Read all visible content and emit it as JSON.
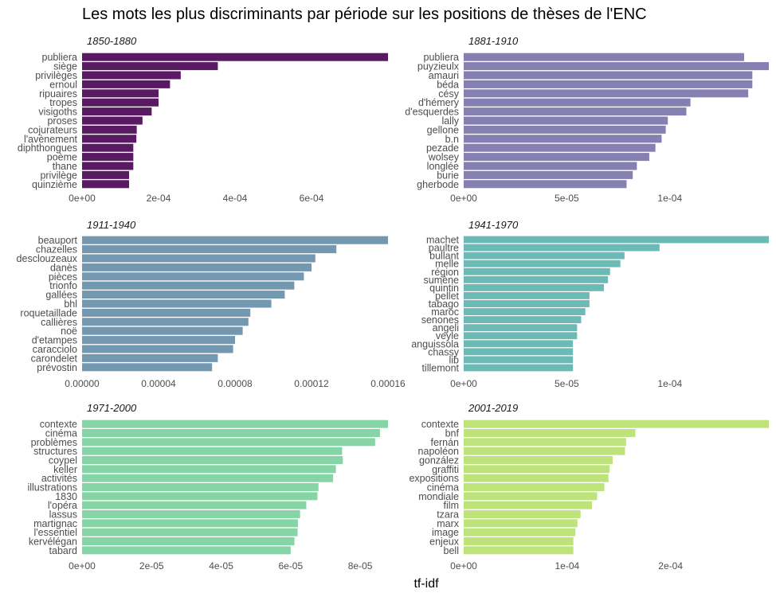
{
  "chart_data": {
    "type": "bar",
    "orientation": "horizontal",
    "title": "Les mots les plus discriminants par période sur les positions de thèses de l'ENC",
    "xlabel": "tf-idf",
    "panels": [
      {
        "title": "1850-1880",
        "color": "#5a1a63",
        "categories": [
          "publiera",
          "siège",
          "privilèges",
          "ernoul",
          "ripuaires",
          "tropes",
          "visigoths",
          "proses",
          "cojurateurs",
          "l'avènement",
          "diphthongues",
          "poème",
          "thane",
          "privilège",
          "quinzième"
        ],
        "values": [
          0.0008,
          0.000355,
          0.000258,
          0.00023,
          0.0002,
          0.0002,
          0.000182,
          0.000158,
          0.000143,
          0.000142,
          0.000134,
          0.000134,
          0.000134,
          0.000123,
          0.000123
        ],
        "xlim": [
          0,
          0.0008
        ],
        "ticks": [
          0,
          0.0002,
          0.0004,
          0.0006
        ],
        "tick_labels": [
          "0e+00",
          "2e-04",
          "4e-04",
          "6e-04"
        ]
      },
      {
        "title": "1881-1910",
        "color": "#8680b2",
        "categories": [
          "publiera",
          "puyzieulx",
          "amauri",
          "béda",
          "césy",
          "d'hémery",
          "d'esquerdes",
          "lally",
          "gellone",
          "b.n",
          "pezade",
          "wolsey",
          "longlée",
          "burie",
          "gherbode"
        ],
        "values": [
          0.000136,
          0.000148,
          0.00014,
          0.00014,
          0.000138,
          0.00011,
          0.000108,
          9.9e-05,
          9.8e-05,
          9.6e-05,
          9.3e-05,
          9e-05,
          8.4e-05,
          8.2e-05,
          7.9e-05
        ],
        "xlim": [
          0,
          0.000148
        ],
        "ticks": [
          0,
          5e-05,
          0.0001
        ],
        "tick_labels": [
          "0e+00",
          "5e-05",
          "1e-04"
        ]
      },
      {
        "title": "1911-1940",
        "color": "#7498b0",
        "categories": [
          "beauport",
          "chazelles",
          "desclouzeaux",
          "danès",
          "pièces",
          "trionfo",
          "gallées",
          "bhl",
          "roquetaillade",
          "callières",
          "noë",
          "d'etampes",
          "caracciolo",
          "carondelet",
          "prévostin"
        ],
        "values": [
          0.00016,
          0.000133,
          0.000122,
          0.00012,
          0.000116,
          0.000111,
          0.000106,
          9.9e-05,
          8.8e-05,
          8.7e-05,
          8.4e-05,
          8e-05,
          7.9e-05,
          7.1e-05,
          6.8e-05
        ],
        "xlim": [
          0,
          0.00016
        ],
        "ticks": [
          0,
          4e-05,
          8e-05,
          0.00012,
          0.00016
        ],
        "tick_labels": [
          "0.00000",
          "0.00004",
          "0.00008",
          "0.00012",
          "0.00016"
        ]
      },
      {
        "title": "1941-1970",
        "color": "#6cbab6",
        "categories": [
          "machet",
          "paultre",
          "bullant",
          "melle",
          "région",
          "sumène",
          "quintin",
          "pellet",
          "tabago",
          "maroc",
          "senones",
          "angeli",
          "veyle",
          "anguissola",
          "chassy",
          "lib",
          "tillemont"
        ],
        "values": [
          0.000148,
          9.5e-05,
          7.8e-05,
          7.6e-05,
          7.1e-05,
          7e-05,
          6.8e-05,
          6.1e-05,
          6.1e-05,
          5.9e-05,
          5.7e-05,
          5.5e-05,
          5.5e-05,
          5.3e-05,
          5.3e-05,
          5.3e-05,
          5.3e-05
        ],
        "xlim": [
          0,
          0.000148
        ],
        "ticks": [
          0,
          5e-05,
          0.0001
        ],
        "tick_labels": [
          "0e+00",
          "5e-05",
          "1e-04"
        ]
      },
      {
        "title": "1971-2000",
        "color": "#85d5a7",
        "categories": [
          "contexte",
          "cinéma",
          "problèmes",
          "structures",
          "coypel",
          "keller",
          "activités",
          "illustrations",
          "1830",
          "l'opéra",
          "lassus",
          "martignac",
          "l'essentiel",
          "kervélégan",
          "tabard"
        ],
        "values": [
          8.8e-05,
          8.57e-05,
          8.43e-05,
          7.48e-05,
          7.5e-05,
          7.3e-05,
          7.22e-05,
          6.8e-05,
          6.77e-05,
          6.45e-05,
          6.27e-05,
          6.21e-05,
          6.2e-05,
          6.11e-05,
          6e-05
        ],
        "xlim": [
          0,
          8.8e-05
        ],
        "ticks": [
          0,
          2e-05,
          4e-05,
          6e-05,
          8e-05
        ],
        "tick_labels": [
          "0e+00",
          "2e-05",
          "4e-05",
          "6e-05",
          "8e-05"
        ]
      },
      {
        "title": "2001-2019",
        "color": "#bde37a",
        "categories": [
          "contexte",
          "bnf",
          "fernán",
          "napoléon",
          "gonzález",
          "graffiti",
          "expositions",
          "cinéma",
          "mondiale",
          "film",
          "tzara",
          "marx",
          "image",
          "enjeux",
          "bell"
        ],
        "values": [
          0.000295,
          0.000166,
          0.000157,
          0.000156,
          0.000144,
          0.000141,
          0.00014,
          0.000136,
          0.000129,
          0.000124,
          0.000113,
          0.00011,
          0.000108,
          0.000106,
          0.000106
        ],
        "xlim": [
          0,
          0.000295
        ],
        "ticks": [
          0,
          0.0001,
          0.0002
        ],
        "tick_labels": [
          "0e+00",
          "1e-04",
          "2e-04"
        ]
      }
    ]
  }
}
